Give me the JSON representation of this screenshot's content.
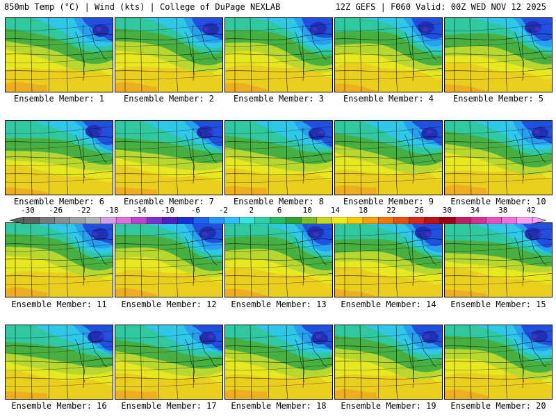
{
  "header": {
    "left": "850mb Temp (°C) | Wind (kts) | College of DuPage NEXLAB",
    "right": "12Z GEFS | F060 Valid: 00Z WED NOV 12 2025"
  },
  "members": [
    "Ensemble Member: 1",
    "Ensemble Member: 2",
    "Ensemble Member: 3",
    "Ensemble Member: 4",
    "Ensemble Member: 5",
    "Ensemble Member: 6",
    "Ensemble Member: 7",
    "Ensemble Member: 8",
    "Ensemble Member: 9",
    "Ensemble Member: 10",
    "Ensemble Member: 11",
    "Ensemble Member: 12",
    "Ensemble Member: 13",
    "Ensemble Member: 14",
    "Ensemble Member: 15",
    "Ensemble Member: 16",
    "Ensemble Member: 17",
    "Ensemble Member: 18",
    "Ensemble Member: 19",
    "Ensemble Member: 20"
  ],
  "legend": {
    "ticks": [
      "-30",
      "-26",
      "-22",
      "-18",
      "-14",
      "-10",
      "-6",
      "-2",
      "2",
      "6",
      "10",
      "14",
      "18",
      "22",
      "26",
      "30",
      "34",
      "38",
      "42"
    ],
    "colors": [
      "#606060",
      "#787878",
      "#8c8c8c",
      "#a0a0a0",
      "#b4b4b4",
      "#d2a0e6",
      "#e070e0",
      "#c040d0",
      "#8030d0",
      "#5020c0",
      "#1830d8",
      "#1e64f0",
      "#2896f8",
      "#30c0f8",
      "#38e0e0",
      "#30d0a0",
      "#28b860",
      "#30a030",
      "#78c020",
      "#c8d820",
      "#f0e818",
      "#f8c800",
      "#f8a000",
      "#f07800",
      "#e85010",
      "#d82818",
      "#c01010",
      "#a00010",
      "#c02060",
      "#d83090",
      "#e850c0",
      "#f070e0",
      "#f8a0f0"
    ]
  },
  "map_colors": {
    "warm_orange": "#f0a020",
    "yellow": "#e8e820",
    "yellow_green": "#b8d830",
    "green": "#48b040",
    "teal": "#30c8a0",
    "cyan": "#30c8e8",
    "light_blue": "#28a0f0",
    "blue": "#2050e0",
    "deep_blue": "#2030b0",
    "purple": "#6030c8"
  }
}
